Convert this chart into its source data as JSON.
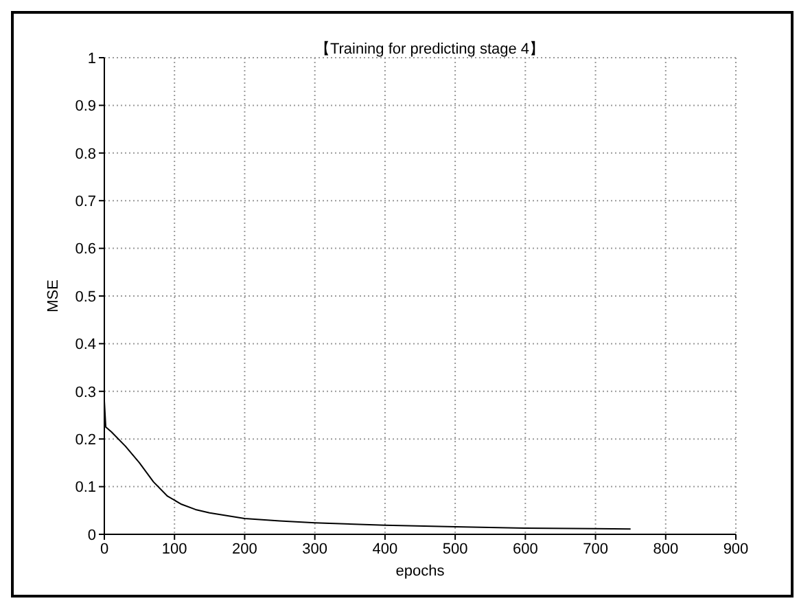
{
  "chart_data": {
    "type": "line",
    "title": "【Training for predicting stage 4】",
    "xlabel": "epochs",
    "ylabel": "MSE",
    "series": [
      {
        "color": "#000000",
        "x": [
          0,
          2,
          10,
          30,
          50,
          70,
          90,
          110,
          130,
          150,
          200,
          250,
          300,
          400,
          500,
          600,
          700,
          750
        ],
        "values": [
          0.28,
          0.225,
          0.215,
          0.185,
          0.15,
          0.11,
          0.08,
          0.063,
          0.052,
          0.045,
          0.033,
          0.028,
          0.024,
          0.019,
          0.016,
          0.013,
          0.012,
          0.011
        ]
      }
    ],
    "xlim": [
      0,
      900
    ],
    "xticks": [
      0,
      100,
      200,
      300,
      400,
      500,
      600,
      700,
      800,
      900
    ],
    "ylim": [
      0,
      1
    ],
    "yticks": [
      0,
      0.1,
      0.2,
      0.3,
      0.4,
      0.5,
      0.6,
      0.7,
      0.8,
      0.9,
      1
    ],
    "grid": true,
    "marker": "none",
    "line_style": "solid"
  }
}
